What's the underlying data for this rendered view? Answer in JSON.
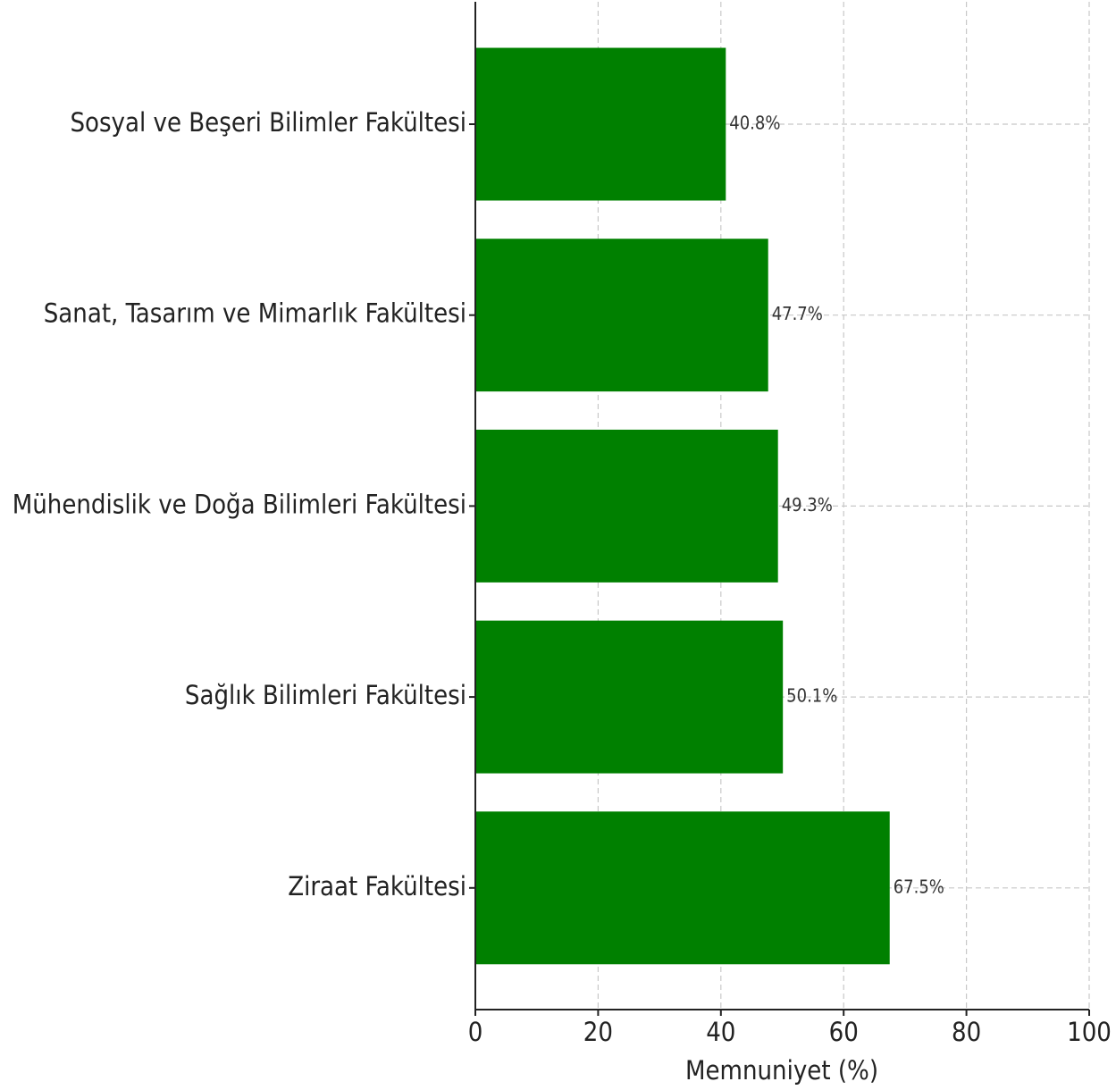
{
  "chart_data": {
    "type": "barh",
    "x_label": "Memnuniyet (%)",
    "categories": [
      "Sosyal ve Beşeri Bilimler Fakültesi",
      "Sanat, Tasarım ve Mimarlık Fakültesi",
      "Mühendislik ve Doğa Bilimleri Fakültesi",
      "Sağlık Bilimleri Fakültesi",
      "Ziraat Fakültesi"
    ],
    "values": [
      40.8,
      47.7,
      49.3,
      50.1,
      67.5
    ],
    "value_labels": [
      "40.8%",
      "47.7%",
      "49.3%",
      "50.1%",
      "67.5%"
    ],
    "color": "#008000",
    "xlim": [
      0,
      100
    ],
    "xticks": [
      0,
      20,
      40,
      60,
      80,
      100
    ],
    "grid": true
  }
}
